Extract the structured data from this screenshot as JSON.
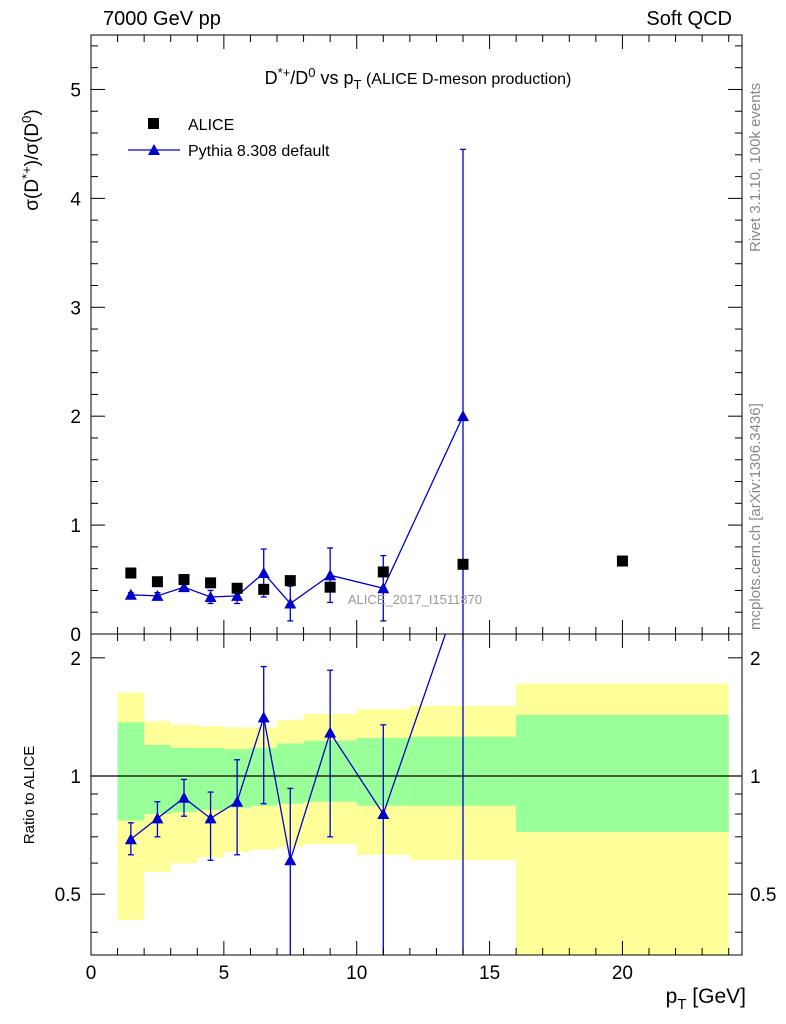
{
  "header": {
    "left": "7000 GeV pp",
    "right": "Soft QCD",
    "side_top": "Rivet 3.1.10,  100k events",
    "side_bottom": "mcplots.cern.ch [arXiv:1306.3436]"
  },
  "chart_data": [
    {
      "type": "scatter",
      "title": "D*+/D0 vs pT (ALICE D-meson production)",
      "title_parts": {
        "a": "D",
        "a_sup": "*+",
        "b": "/D",
        "b_sup": "0",
        "c": " vs p",
        "c_sub": "T",
        "d": " (ALICE D-meson production)"
      },
      "ylabel": "σ(D*+)/σ(D0)",
      "ylabel_parts": {
        "a": "σ(D",
        "a_sup": "*+",
        "b": ")/σ(D",
        "b_sup": "0",
        "c": ")"
      },
      "xlim": [
        0,
        24.5
      ],
      "ylim": [
        0,
        5.5
      ],
      "yticks": [
        0,
        1,
        2,
        3,
        4,
        5
      ],
      "yticklabels": [
        "0",
        "1",
        "2",
        "3",
        "4",
        "5"
      ],
      "watermark": "ALICE_2017_I1511870",
      "legend_position": "top-left",
      "series": [
        {
          "name": "ALICE",
          "color": "#000000",
          "marker": "square",
          "x": [
            1.5,
            2.5,
            3.5,
            4.5,
            5.5,
            6.5,
            7.5,
            9,
            11,
            14,
            20
          ],
          "y": [
            0.56,
            0.48,
            0.5,
            0.47,
            0.42,
            0.41,
            0.49,
            0.43,
            0.57,
            0.64,
            0.67
          ]
        },
        {
          "name": "Pythia 8.308 default",
          "color": "#0000cc",
          "marker": "triangle",
          "x": [
            1.5,
            2.5,
            3.5,
            4.5,
            5.5,
            6.5,
            7.5,
            9,
            11,
            14
          ],
          "y": [
            0.36,
            0.35,
            0.43,
            0.34,
            0.35,
            0.56,
            0.28,
            0.54,
            0.42,
            2.0
          ],
          "err": [
            0.02,
            0.03,
            0.03,
            0.06,
            0.07,
            0.22,
            0.16,
            0.25,
            0.3,
            2.45
          ]
        }
      ]
    },
    {
      "type": "line",
      "ylabel": "Ratio to ALICE",
      "xlabel": "pT [GeV]",
      "xlabel_parts": {
        "a": "p",
        "a_sub": "T",
        "b": " [GeV]"
      },
      "xlim": [
        0,
        24.5
      ],
      "ylim": [
        0.35,
        2.3
      ],
      "log_y": true,
      "xticks": [
        0,
        5,
        10,
        15,
        20
      ],
      "xticklabels": [
        "0",
        "5",
        "10",
        "15",
        "20"
      ],
      "yticks": [
        0.5,
        1,
        2
      ],
      "yticklabels": [
        "0.5",
        "1",
        "2"
      ],
      "bands": {
        "bins": [
          [
            1,
            2
          ],
          [
            2,
            3
          ],
          [
            3,
            4
          ],
          [
            4,
            5
          ],
          [
            5,
            6
          ],
          [
            6,
            7
          ],
          [
            7,
            8
          ],
          [
            8,
            10
          ],
          [
            10,
            12
          ],
          [
            12,
            16
          ],
          [
            16,
            24
          ]
        ],
        "yellow": [
          [
            0.43,
            1.63
          ],
          [
            0.57,
            1.38
          ],
          [
            0.6,
            1.35
          ],
          [
            0.62,
            1.34
          ],
          [
            0.64,
            1.33
          ],
          [
            0.65,
            1.33
          ],
          [
            0.66,
            1.39
          ],
          [
            0.67,
            1.44
          ],
          [
            0.63,
            1.48
          ],
          [
            0.61,
            1.51
          ],
          [
            0.35,
            1.72
          ]
        ],
        "green": [
          [
            0.77,
            1.37
          ],
          [
            0.8,
            1.2
          ],
          [
            0.81,
            1.18
          ],
          [
            0.82,
            1.18
          ],
          [
            0.83,
            1.17
          ],
          [
            0.84,
            1.18
          ],
          [
            0.85,
            1.21
          ],
          [
            0.86,
            1.23
          ],
          [
            0.84,
            1.25
          ],
          [
            0.84,
            1.26
          ],
          [
            0.72,
            1.43
          ]
        ]
      },
      "series": [
        {
          "name": "Pythia 8.308 default",
          "color": "#0000cc",
          "x": [
            1.5,
            2.5,
            3.5,
            4.5,
            5.5,
            6.5,
            7.5,
            9,
            11,
            14
          ],
          "y": [
            0.69,
            0.78,
            0.88,
            0.78,
            0.86,
            1.41,
            0.61,
            1.29,
            0.8,
            3.1
          ],
          "lo": [
            0.63,
            0.7,
            0.79,
            0.61,
            0.63,
            0.85,
            0.3,
            0.7,
            0.3,
            0.3
          ],
          "hi": [
            0.76,
            0.86,
            0.98,
            0.91,
            1.1,
            1.9,
            0.93,
            1.86,
            1.35,
            6.9
          ]
        }
      ]
    }
  ]
}
